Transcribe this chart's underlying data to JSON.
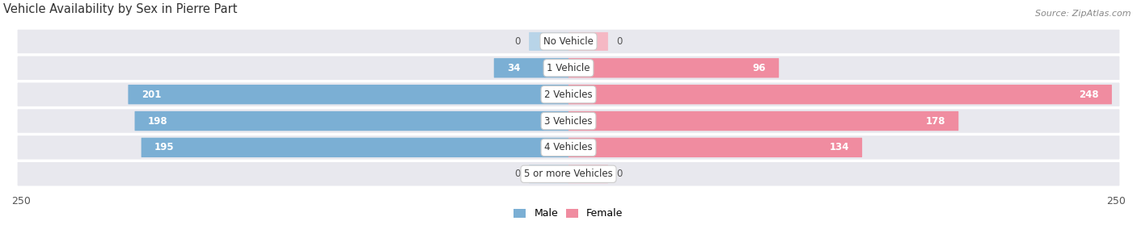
{
  "title": "Vehicle Availability by Sex in Pierre Part",
  "source": "Source: ZipAtlas.com",
  "categories": [
    "No Vehicle",
    "1 Vehicle",
    "2 Vehicles",
    "3 Vehicles",
    "4 Vehicles",
    "5 or more Vehicles"
  ],
  "male_values": [
    0,
    34,
    201,
    198,
    195,
    0
  ],
  "female_values": [
    0,
    96,
    248,
    178,
    134,
    0
  ],
  "male_color": "#7bafd4",
  "female_color": "#f08ca0",
  "male_color_light": "#b8d4e8",
  "female_color_light": "#f5b8c4",
  "bar_bg_color": "#e8e8ee",
  "bar_bg_edge": "#d8d8de",
  "max_val": 250,
  "title_fontsize": 10.5,
  "label_fontsize": 8.5,
  "cat_fontsize": 8.5,
  "axis_fontsize": 9,
  "source_fontsize": 8,
  "legend_fontsize": 9
}
